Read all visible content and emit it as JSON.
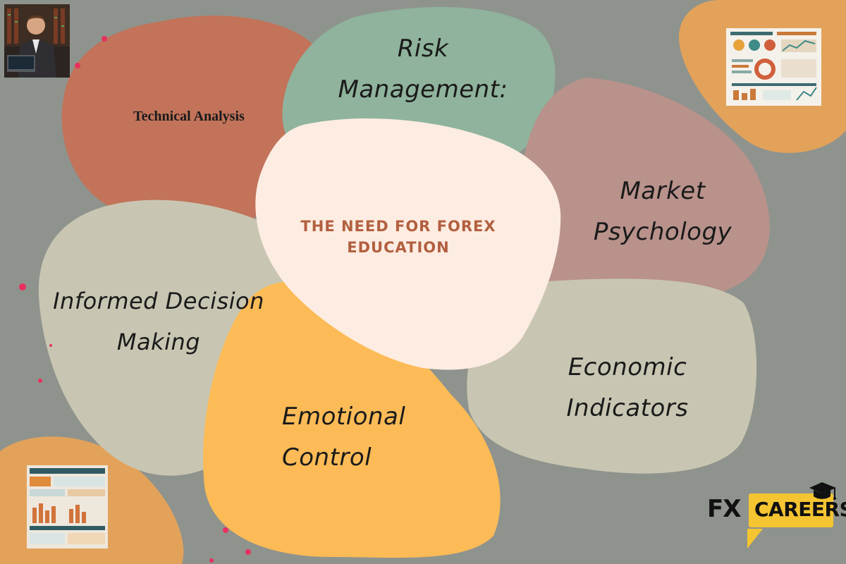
{
  "center": {
    "title_line1": "THE NEED FOR FOREX",
    "title_line2": "EDUCATION"
  },
  "topics": {
    "technical_analysis": "Technical Analysis",
    "risk_management": {
      "line1": "Risk",
      "line2": "Management:"
    },
    "market_psychology": {
      "line1": "Market",
      "line2": "Psychology"
    },
    "informed_decision": {
      "line1": "Informed Decision",
      "line2": "Making"
    },
    "economic_indicators": {
      "line1": "Economic",
      "line2": "Indicators"
    },
    "emotional_control": {
      "line1": "Emotional",
      "line2": "Control"
    }
  },
  "brand": {
    "prefix": "FX",
    "name": "CAREERS"
  },
  "colors": {
    "background": "#8f938d",
    "terracotta": "#c2735a",
    "sage": "#8fb39c",
    "mauve": "#b8928b",
    "beige": "#c8c6b2",
    "yellow": "#fcbb57",
    "orange": "#e3a25a",
    "center": "#fdece1",
    "center_text": "#b25f3f",
    "dots": "#e8305f",
    "brand_yellow": "#f5c431"
  },
  "icons": [
    "graduation-cap-icon"
  ]
}
